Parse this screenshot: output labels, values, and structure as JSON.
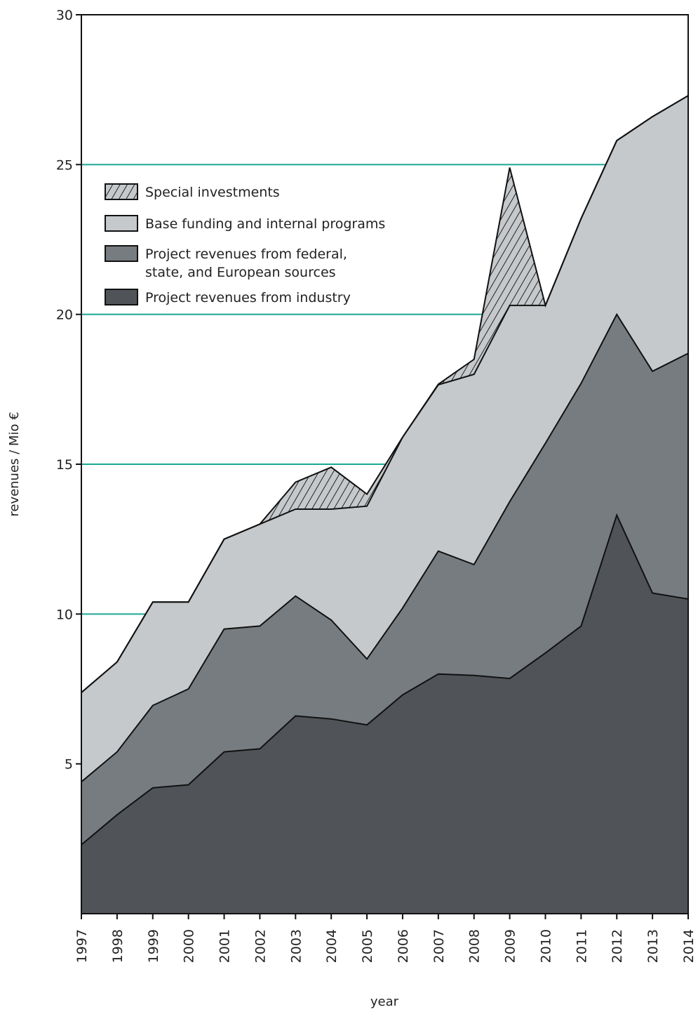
{
  "chart_data": {
    "type": "area",
    "stacked": true,
    "x": [
      1997,
      1998,
      1999,
      2000,
      2001,
      2002,
      2003,
      2004,
      2005,
      2006,
      2007,
      2008,
      2009,
      2010,
      2011,
      2012,
      2013,
      2014
    ],
    "x_tick_labels": [
      "1997",
      "1998",
      "1999",
      "2000",
      "2001",
      "2002",
      "2003",
      "2004",
      "2005",
      "2006",
      "2007",
      "2008",
      "2009",
      "2010",
      "2011",
      "2012",
      "2013",
      "2014"
    ],
    "series": [
      {
        "name": "Project revenues from industry",
        "color": "#505458",
        "values": [
          2.3,
          3.3,
          4.2,
          4.3,
          5.4,
          5.5,
          6.6,
          6.5,
          6.3,
          7.3,
          8.0,
          7.95,
          7.85,
          8.7,
          9.6,
          13.3,
          10.7,
          10.5
        ]
      },
      {
        "name": "Project revenues from federal, state, and European sources",
        "color": "#777c80",
        "values": [
          2.1,
          2.1,
          2.75,
          3.2,
          4.1,
          4.1,
          4.0,
          3.3,
          2.2,
          2.9,
          4.1,
          3.7,
          5.9,
          7.0,
          8.1,
          6.7,
          7.4,
          8.2
        ]
      },
      {
        "name": "Base funding and internal programs",
        "color": "#c6c9cb",
        "values": [
          2.98,
          3.0,
          3.45,
          2.9,
          3.0,
          3.4,
          2.9,
          3.7,
          5.1,
          5.7,
          5.55,
          6.35,
          6.55,
          4.6,
          5.5,
          5.8,
          8.5,
          8.6
        ]
      },
      {
        "name": "Special investments",
        "color": "#c6c9cb",
        "pattern": "hatch",
        "values": [
          0,
          0,
          0,
          0,
          0,
          0,
          0.9,
          1.4,
          0.4,
          0,
          0.02,
          0.5,
          4.6,
          0,
          0,
          0,
          0,
          0
        ]
      }
    ],
    "legend": [
      "Special investments",
      "Base funding and internal programs",
      "Project revenues from federal, state, and European sources",
      "Project revenues from industry"
    ],
    "legend_lines": [
      [
        "Special investments"
      ],
      [
        "Base funding and internal programs"
      ],
      [
        "Project revenues from federal,",
        "state, and European sources"
      ],
      [
        "Project revenues from industry"
      ]
    ],
    "legend_placement": "top-left",
    "title": "",
    "xlabel": "year",
    "ylabel": "revenues / Mio €",
    "ylim": [
      0,
      30
    ],
    "y_tick_values": [
      5,
      10,
      15,
      20,
      25,
      30
    ],
    "y_tick_labels": [
      "5",
      "10",
      "15",
      "20",
      "25",
      "30"
    ],
    "grid": true,
    "grid_values": [
      10,
      15,
      20,
      25
    ],
    "grid_color": "#1aa894",
    "frame_color": "#111111"
  }
}
